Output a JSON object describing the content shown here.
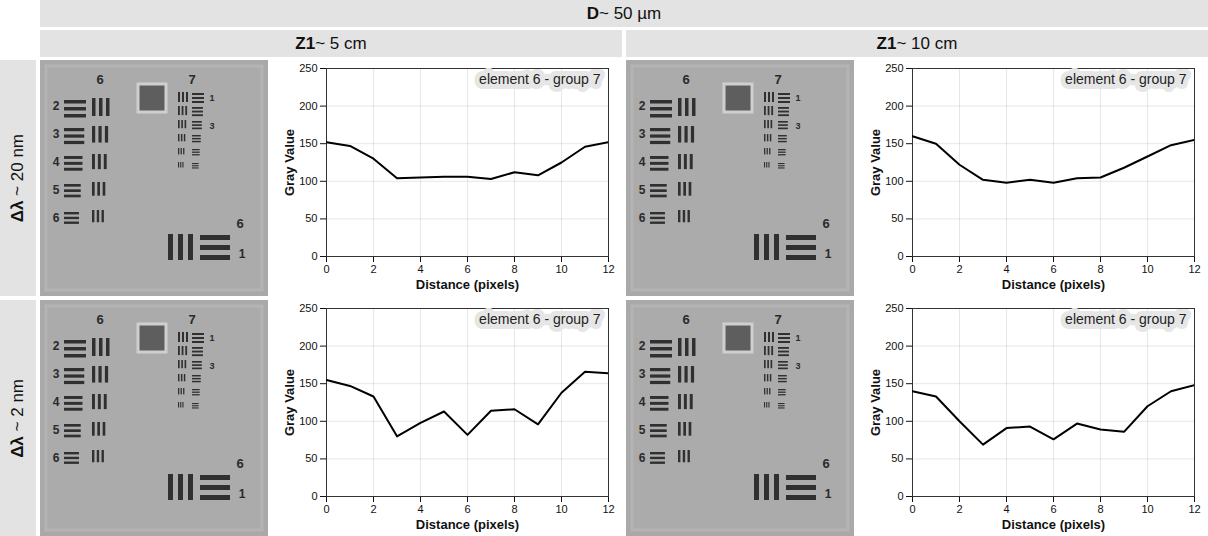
{
  "figure": {
    "header": "D ~ 50 µm",
    "columns": [
      "Z1 ~ 5 cm",
      "Z1 ~ 10 cm"
    ],
    "rows": [
      "Δλ ~ 20 nm",
      "Δλ ~ 2 nm"
    ],
    "target_labels": {
      "group_left": "6",
      "group_right": "7",
      "left_elements": [
        "2",
        "3",
        "4",
        "5",
        "6"
      ],
      "right_elements": [
        "1",
        "3"
      ],
      "group_bottom": "6",
      "bottom_element": "1"
    }
  },
  "chart_data": [
    {
      "type": "line",
      "title": "element 6 - group 7",
      "xlabel": "Distance (pixels)",
      "ylabel": "Gray Value",
      "x": [
        0,
        1,
        2,
        3,
        4,
        5,
        6,
        7,
        8,
        9,
        10,
        11,
        12
      ],
      "values": [
        152,
        147,
        130,
        104,
        105,
        106,
        106,
        103,
        112,
        108,
        125,
        146,
        152
      ],
      "color": "#000000",
      "xlim": [
        0,
        12
      ],
      "ylim": [
        0,
        250
      ],
      "xticks": [
        0,
        2,
        4,
        6,
        8,
        10,
        12
      ],
      "yticks": [
        0,
        50,
        100,
        150,
        200,
        250
      ],
      "grid": true
    },
    {
      "type": "line",
      "title": "element 6 - group 7",
      "xlabel": "Distance (pixels)",
      "ylabel": "Gray Value",
      "x": [
        0,
        1,
        2,
        3,
        4,
        5,
        6,
        7,
        8,
        9,
        10,
        11,
        12
      ],
      "values": [
        160,
        150,
        122,
        102,
        98,
        102,
        98,
        104,
        105,
        118,
        133,
        148,
        155
      ],
      "color": "#000000",
      "xlim": [
        0,
        12
      ],
      "ylim": [
        0,
        250
      ],
      "xticks": [
        0,
        2,
        4,
        6,
        8,
        10,
        12
      ],
      "yticks": [
        0,
        50,
        100,
        150,
        200,
        250
      ],
      "grid": true
    },
    {
      "type": "line",
      "title": "element 6 - group 7",
      "xlabel": "Distance (pixels)",
      "ylabel": "Gray Value",
      "x": [
        0,
        1,
        2,
        3,
        4,
        5,
        6,
        7,
        8,
        9,
        10,
        11,
        12
      ],
      "values": [
        155,
        147,
        133,
        80,
        98,
        113,
        82,
        114,
        116,
        96,
        138,
        166,
        164
      ],
      "color": "#000000",
      "xlim": [
        0,
        12
      ],
      "ylim": [
        0,
        250
      ],
      "xticks": [
        0,
        2,
        4,
        6,
        8,
        10,
        12
      ],
      "yticks": [
        0,
        50,
        100,
        150,
        200,
        250
      ],
      "grid": true
    },
    {
      "type": "line",
      "title": "element 6 - group 7",
      "xlabel": "Distance (pixels)",
      "ylabel": "Gray Value",
      "x": [
        0,
        1,
        2,
        3,
        4,
        5,
        6,
        7,
        8,
        9,
        10,
        11,
        12
      ],
      "values": [
        140,
        133,
        100,
        69,
        91,
        93,
        76,
        97,
        89,
        86,
        120,
        140,
        148
      ],
      "color": "#000000",
      "xlim": [
        0,
        12
      ],
      "ylim": [
        0,
        250
      ],
      "xticks": [
        0,
        2,
        4,
        6,
        8,
        10,
        12
      ],
      "yticks": [
        0,
        50,
        100,
        150,
        200,
        250
      ],
      "grid": true
    }
  ]
}
